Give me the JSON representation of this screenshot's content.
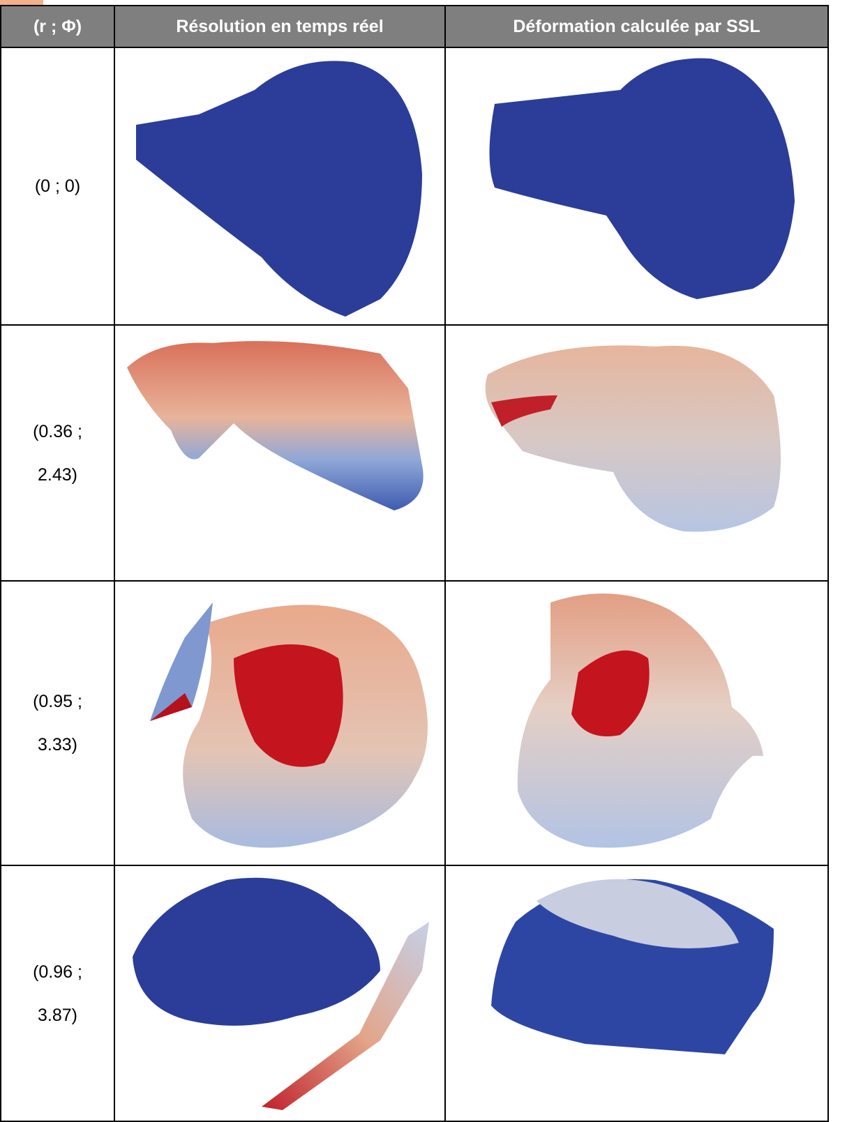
{
  "table": {
    "header": [
      "(r ; Φ)",
      "Résolution en temps réel",
      "Déformation calculée par SSL"
    ],
    "rows": [
      [
        "(0 ; 0)"
      ],
      [
        "(0.36 ; 2.43)"
      ],
      [
        "(0.95 ; 3.33)"
      ],
      [
        "(0.96 ; 3.87)"
      ]
    ]
  }
}
